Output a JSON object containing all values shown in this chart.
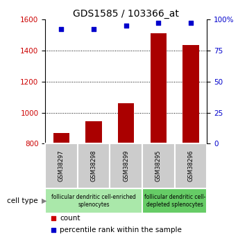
{
  "title": "GDS1585 / 103366_at",
  "samples": [
    "GSM38297",
    "GSM38298",
    "GSM38299",
    "GSM38295",
    "GSM38296"
  ],
  "counts": [
    870,
    945,
    1060,
    1510,
    1435
  ],
  "percentiles": [
    92,
    92,
    95,
    97,
    97
  ],
  "ylim_left": [
    800,
    1600
  ],
  "ylim_right": [
    0,
    100
  ],
  "yticks_left": [
    800,
    1000,
    1200,
    1400,
    1600
  ],
  "yticks_right": [
    0,
    25,
    50,
    75,
    100
  ],
  "bar_color": "#aa0000",
  "dot_color": "#0000cc",
  "bar_width": 0.5,
  "group1_label": "follicular dendritic cell-enriched\nsplenocytes",
  "group2_label": "follicular dendritic cell-\ndepleted splenocytes",
  "group1_bg": "#aae8aa",
  "group2_bg": "#66cc66",
  "sample_box_bg": "#cccccc",
  "legend_count_color": "#cc0000",
  "legend_pct_color": "#0000cc",
  "tick_label_color_left": "#cc0000",
  "tick_label_color_right": "#0000cc",
  "cell_type_label": "cell type",
  "legend_count_text": "count",
  "legend_pct_text": "percentile rank within the sample"
}
